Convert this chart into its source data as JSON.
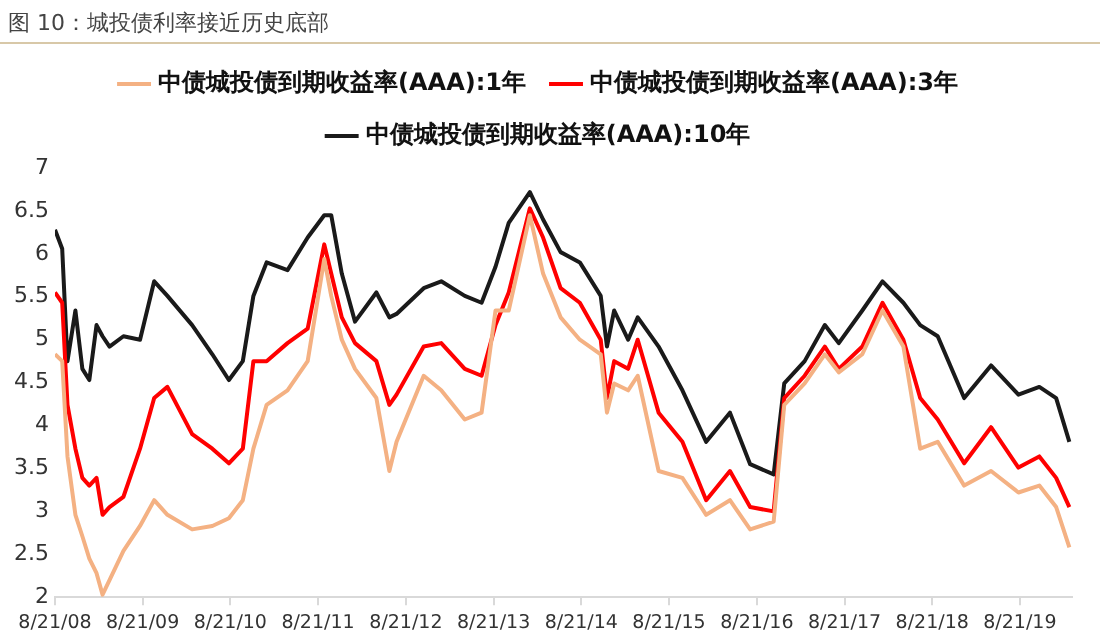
{
  "chart_data": {
    "type": "line",
    "title": "图 10：城投债利率接近历史底部",
    "x": [
      "2008-08-21",
      "2008-09-20",
      "2008-10-12",
      "2008-11-14",
      "2008-12-13",
      "2009-01-11",
      "2009-02-10",
      "2009-03-07",
      "2009-04-05",
      "2009-06-02",
      "2009-08-10",
      "2009-10-08",
      "2009-12-02",
      "2010-03-15",
      "2010-06-07",
      "2010-08-15",
      "2010-10-12",
      "2010-11-25",
      "2011-01-19",
      "2011-04-16",
      "2011-07-09",
      "2011-09-16",
      "2011-10-15",
      "2011-11-28",
      "2012-01-22",
      "2012-04-20",
      "2012-06-13",
      "2012-07-13",
      "2012-11-03",
      "2013-01-15",
      "2013-04-23",
      "2013-07-02",
      "2013-08-29",
      "2013-10-23",
      "2014-01-19",
      "2014-03-15",
      "2014-05-27",
      "2014-08-15",
      "2014-11-10",
      "2014-12-06",
      "2015-01-05",
      "2015-03-04",
      "2015-04-13",
      "2015-07-09",
      "2015-10-16",
      "2016-01-23",
      "2016-05-01",
      "2016-07-24",
      "2016-10-30",
      "2016-12-13",
      "2017-03-08",
      "2017-05-31",
      "2017-07-28",
      "2017-11-03",
      "2018-01-26",
      "2018-04-23",
      "2018-07-02",
      "2018-09-13",
      "2019-01-01",
      "2019-04-23",
      "2019-08-15",
      "2019-11-10",
      "2020-01-19",
      "2020-03-14"
    ],
    "series": [
      {
        "name": "中债城投债到期收益率(AAA):1年",
        "color": "#f4b183",
        "values": [
          4.83,
          4.75,
          3.64,
          2.96,
          2.71,
          2.45,
          2.28,
          2.03,
          2.2,
          2.54,
          2.83,
          3.13,
          2.96,
          2.79,
          2.83,
          2.92,
          3.13,
          3.73,
          4.24,
          4.41,
          4.75,
          5.94,
          5.51,
          5.0,
          4.66,
          4.32,
          3.47,
          3.81,
          4.58,
          4.41,
          4.07,
          4.15,
          5.34,
          5.34,
          6.45,
          5.77,
          5.26,
          5.0,
          4.83,
          4.15,
          4.49,
          4.41,
          4.58,
          3.47,
          3.39,
          2.96,
          3.13,
          2.79,
          2.88,
          4.24,
          4.49,
          4.83,
          4.62,
          4.83,
          5.34,
          4.92,
          3.73,
          3.81,
          3.3,
          3.47,
          3.22,
          3.3,
          3.05,
          2.58
        ]
      },
      {
        "name": "中债城投债到期收益率(AAA):3年",
        "color": "#ff0000",
        "values": [
          5.55,
          5.43,
          4.24,
          3.73,
          3.39,
          3.3,
          3.39,
          2.96,
          3.05,
          3.17,
          3.73,
          4.32,
          4.45,
          3.9,
          3.73,
          3.56,
          3.73,
          4.75,
          4.75,
          4.96,
          5.13,
          6.11,
          5.77,
          5.26,
          4.96,
          4.75,
          4.24,
          4.36,
          4.92,
          4.96,
          4.66,
          4.58,
          5.17,
          5.55,
          6.53,
          6.19,
          5.6,
          5.43,
          5.0,
          4.32,
          4.75,
          4.66,
          5.0,
          4.15,
          3.81,
          3.13,
          3.47,
          3.05,
          3.0,
          4.32,
          4.58,
          4.92,
          4.66,
          4.92,
          5.43,
          5.0,
          4.32,
          4.07,
          3.56,
          3.98,
          3.51,
          3.64,
          3.39,
          3.05
        ]
      },
      {
        "name": "中债城投债到期收益率(AAA):10年",
        "color": "#1a1a1a",
        "values": [
          6.28,
          6.06,
          4.75,
          5.34,
          4.66,
          4.53,
          5.17,
          5.04,
          4.92,
          5.04,
          5.0,
          5.68,
          5.51,
          5.17,
          4.83,
          4.53,
          4.75,
          5.51,
          5.9,
          5.81,
          6.19,
          6.45,
          6.45,
          5.77,
          5.21,
          5.55,
          5.26,
          5.3,
          5.6,
          5.68,
          5.51,
          5.43,
          5.85,
          6.36,
          6.72,
          6.4,
          6.02,
          5.9,
          5.51,
          4.92,
          5.34,
          5.0,
          5.26,
          4.92,
          4.41,
          3.81,
          4.15,
          3.55,
          3.43,
          4.49,
          4.75,
          5.17,
          4.96,
          5.34,
          5.68,
          5.43,
          5.17,
          5.04,
          4.32,
          4.7,
          4.36,
          4.45,
          4.32,
          3.81
        ]
      }
    ],
    "xlim": [
      "2008-08-21",
      "2020-03-25"
    ],
    "xticks": [
      {
        "value": "2008-08-21",
        "label": "8/21/08"
      },
      {
        "value": "2009-08-21",
        "label": "8/21/09"
      },
      {
        "value": "2010-08-21",
        "label": "8/21/10"
      },
      {
        "value": "2011-08-21",
        "label": "8/21/11"
      },
      {
        "value": "2012-08-21",
        "label": "8/21/12"
      },
      {
        "value": "2013-08-21",
        "label": "8/21/13"
      },
      {
        "value": "2014-08-21",
        "label": "8/21/14"
      },
      {
        "value": "2015-08-21",
        "label": "8/21/15"
      },
      {
        "value": "2016-08-21",
        "label": "8/21/16"
      },
      {
        "value": "2017-08-21",
        "label": "8/21/17"
      },
      {
        "value": "2018-08-21",
        "label": "8/21/18"
      },
      {
        "value": "2019-08-21",
        "label": "8/21/19"
      }
    ],
    "ylim": [
      2,
      7
    ],
    "yticks": [
      2,
      2.5,
      3,
      3.5,
      4,
      4.5,
      5,
      5.5,
      6,
      6.5,
      7
    ],
    "grid": false,
    "legend": "top",
    "marker": "none",
    "line_style": "solid"
  }
}
